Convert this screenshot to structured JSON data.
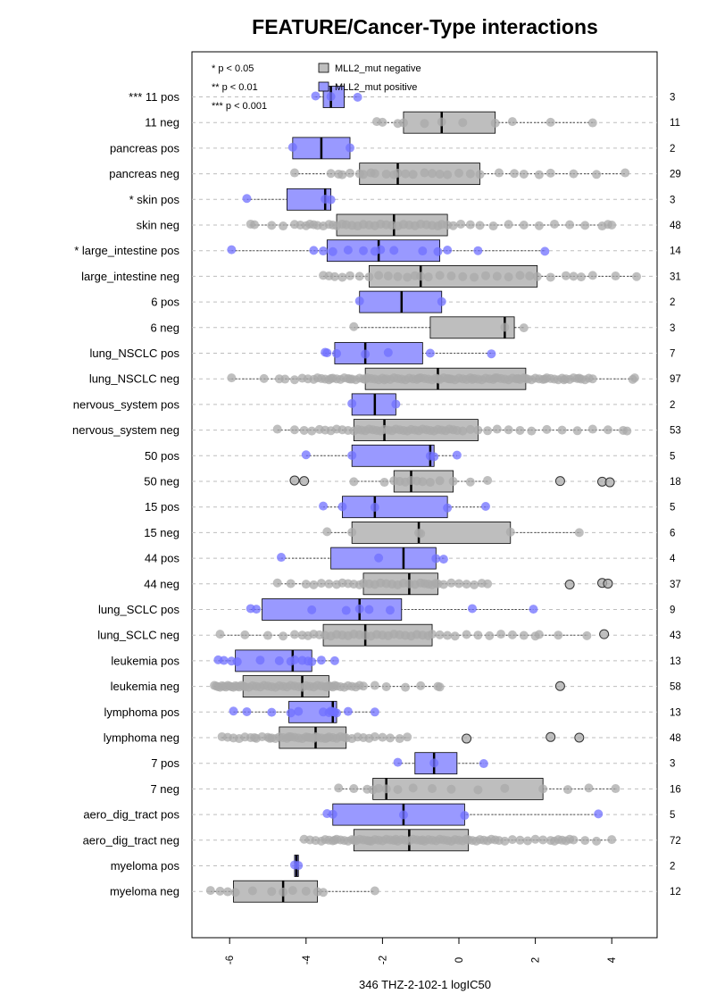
{
  "chart_data": {
    "type": "boxplot",
    "title": "FEATURE/Cancer-Type interactions",
    "xlabel": "346 THZ-2-102-1 logIC50",
    "xlim": [
      -6.8,
      5.3
    ],
    "x_ticks": [
      -6,
      -4,
      -2,
      0,
      2,
      4
    ],
    "x_tick_labels": [
      "-6",
      "-4",
      "-2",
      "0",
      "2",
      "4"
    ],
    "grid": true,
    "significance_legend": [
      "* p < 0.05",
      "** p < 0.01",
      "*** p < 0.001"
    ],
    "legend": [
      {
        "label": "MLL2_mut negative",
        "color": "#bebebe"
      },
      {
        "label": "MLL2_mut positive",
        "color": "#9999ff"
      }
    ],
    "colors": {
      "negative": "#bebebe",
      "positive": "#9999ff",
      "neg_point": "#a9a9a9",
      "pos_point": "#7070ff"
    },
    "rows": [
      {
        "label": "*** 11 pos",
        "n": "3",
        "group": "pos",
        "q1": -3.55,
        "median": -3.35,
        "q3": -3.0,
        "lo": -3.75,
        "hi": -2.65,
        "points": [
          -3.75,
          -3.35,
          -2.65
        ]
      },
      {
        "label": "11 neg",
        "n": "11",
        "group": "neg",
        "q1": -1.45,
        "median": -0.45,
        "q3": 0.95,
        "lo": -2.15,
        "hi": 3.5,
        "points": [
          -2.15,
          -2.0,
          -1.45,
          -0.9,
          -0.45,
          0.1,
          0.95,
          1.4,
          2.4,
          3.5,
          -1.6
        ]
      },
      {
        "label": "pancreas pos",
        "n": "2",
        "group": "pos",
        "q1": -4.35,
        "median": -3.6,
        "q3": -2.85,
        "lo": -4.35,
        "hi": -2.85,
        "points": [
          -4.35,
          -2.85
        ]
      },
      {
        "label": "pancreas neg",
        "n": "29",
        "group": "neg",
        "q1": -2.6,
        "median": -1.6,
        "q3": 0.55,
        "lo": -4.3,
        "hi": 4.35,
        "points": [
          -4.3,
          -3.35,
          -3.15,
          -3.05,
          -2.85,
          -2.6,
          -2.5,
          -2.3,
          -2.2,
          -1.9,
          -1.7,
          -1.6,
          -1.4,
          -1.2,
          -0.9,
          -0.7,
          -0.5,
          -0.3,
          0.0,
          0.3,
          0.55,
          1.05,
          1.45,
          1.7,
          2.1,
          2.4,
          3.0,
          3.6,
          4.35
        ]
      },
      {
        "label": "* skin pos",
        "n": "3",
        "group": "pos",
        "q1": -4.5,
        "median": -3.5,
        "q3": -3.35,
        "lo": -5.55,
        "hi": -3.35,
        "points": [
          -5.55,
          -3.5,
          -3.35
        ]
      },
      {
        "label": "skin neg",
        "n": "48",
        "group": "neg",
        "q1": -3.2,
        "median": -1.7,
        "q3": -0.3,
        "lo": -5.45,
        "hi": 4.0,
        "points": [
          -5.45,
          -5.35,
          -4.9,
          -4.6,
          -4.3,
          -4.15,
          -4.0,
          -3.9,
          -3.8,
          -3.7,
          -3.55,
          -3.4,
          -3.3,
          -3.2,
          -3.05,
          -2.95,
          -2.8,
          -2.65,
          -2.5,
          -2.35,
          -2.2,
          -2.05,
          -1.9,
          -1.75,
          -1.6,
          -1.45,
          -1.3,
          -1.15,
          -1.0,
          -0.85,
          -0.7,
          -0.55,
          -0.45,
          -0.3,
          -0.15,
          0.05,
          0.3,
          0.55,
          0.9,
          1.3,
          1.7,
          2.1,
          2.5,
          2.9,
          3.3,
          3.75,
          3.9,
          4.0
        ]
      },
      {
        "label": "* large_intestine pos",
        "n": "14",
        "group": "pos",
        "q1": -3.45,
        "median": -2.1,
        "q3": -0.5,
        "lo": -5.95,
        "hi": 2.25,
        "points": [
          -5.95,
          -3.8,
          -3.55,
          -3.3,
          -2.9,
          -2.5,
          -2.2,
          -2.05,
          -1.7,
          -0.95,
          -0.55,
          -0.3,
          0.5,
          2.25
        ]
      },
      {
        "label": "large_intestine neg",
        "n": "31",
        "group": "neg",
        "q1": -2.35,
        "median": -1.0,
        "q3": 2.05,
        "lo": -3.55,
        "hi": 4.65,
        "points": [
          -3.55,
          -3.4,
          -3.25,
          -3.05,
          -2.85,
          -2.6,
          -2.35,
          -2.1,
          -1.85,
          -1.6,
          -1.35,
          -1.15,
          -1.0,
          -0.8,
          -0.5,
          -0.2,
          0.1,
          0.4,
          0.7,
          1.0,
          1.3,
          1.6,
          1.85,
          2.05,
          2.4,
          2.8,
          3.0,
          3.2,
          3.5,
          4.1,
          4.65
        ]
      },
      {
        "label": "6 pos",
        "n": "2",
        "group": "pos",
        "q1": -2.6,
        "median": -1.5,
        "q3": -0.45,
        "lo": -2.6,
        "hi": -0.45,
        "points": [
          -2.6,
          -0.45
        ]
      },
      {
        "label": "6 neg",
        "n": "3",
        "group": "neg",
        "q1": -0.75,
        "median": 1.2,
        "q3": 1.45,
        "lo": -2.75,
        "hi": 1.7,
        "points": [
          -2.75,
          1.2,
          1.7
        ]
      },
      {
        "label": "lung_NSCLC pos",
        "n": "7",
        "group": "pos",
        "q1": -3.25,
        "median": -2.45,
        "q3": -0.95,
        "lo": -3.5,
        "hi": 0.85,
        "points": [
          -3.5,
          -3.45,
          -3.2,
          -2.45,
          -1.85,
          -0.75,
          0.85
        ]
      },
      {
        "label": "lung_NSCLC neg",
        "n": "97",
        "group": "neg",
        "q1": -2.45,
        "median": -0.55,
        "q3": 1.75,
        "lo": -5.95,
        "hi": 4.6,
        "points": [
          -5.95,
          -5.1,
          -4.55,
          -4.3,
          -4.1,
          -3.95,
          -3.8,
          -3.7,
          -3.6,
          -3.5,
          -3.4,
          -3.3,
          -3.2,
          -3.1,
          -3.0,
          -2.9,
          -2.8,
          -2.7,
          -2.6,
          -2.5,
          -2.45,
          -2.4,
          -2.3,
          -2.2,
          -2.1,
          -2.0,
          -1.9,
          -1.8,
          -1.7,
          -1.6,
          -1.5,
          -1.4,
          -1.3,
          -1.2,
          -1.1,
          -1.0,
          -0.9,
          -0.8,
          -0.7,
          -0.6,
          -0.55,
          -0.5,
          -0.4,
          -0.3,
          -0.2,
          -0.1,
          0.0,
          0.1,
          0.2,
          0.3,
          0.4,
          0.5,
          0.6,
          0.7,
          0.8,
          0.9,
          1.0,
          1.1,
          1.2,
          1.3,
          1.4,
          1.5,
          1.6,
          1.7,
          1.75,
          1.8,
          1.9,
          2.0,
          2.1,
          2.2,
          2.3,
          2.4,
          2.5,
          2.6,
          2.7,
          2.8,
          2.9,
          3.0,
          3.1,
          3.2,
          3.3,
          3.4,
          3.5,
          4.55,
          4.6,
          -3.35,
          -2.85,
          -1.95,
          -1.05,
          -0.25,
          0.35,
          0.95,
          1.55,
          2.25,
          2.75,
          3.15,
          -4.7
        ]
      },
      {
        "label": "nervous_system pos",
        "n": "2",
        "group": "pos",
        "q1": -2.8,
        "median": -2.2,
        "q3": -1.65,
        "lo": -2.8,
        "hi": -1.65,
        "points": [
          -2.8,
          -1.65
        ]
      },
      {
        "label": "nervous_system neg",
        "n": "53",
        "group": "neg",
        "q1": -2.75,
        "median": -1.95,
        "q3": 0.5,
        "lo": -4.75,
        "hi": 4.4,
        "points": [
          -4.75,
          -4.3,
          -4.05,
          -3.85,
          -3.65,
          -3.5,
          -3.35,
          -3.2,
          -3.05,
          -2.9,
          -2.75,
          -2.65,
          -2.55,
          -2.45,
          -2.35,
          -2.25,
          -2.15,
          -2.05,
          -1.95,
          -1.85,
          -1.75,
          -1.65,
          -1.55,
          -1.45,
          -1.35,
          -1.25,
          -1.15,
          -1.05,
          -0.95,
          -0.85,
          -0.75,
          -0.65,
          -0.55,
          -0.45,
          -0.35,
          -0.25,
          -0.15,
          -0.05,
          0.1,
          0.3,
          0.5,
          0.75,
          1.0,
          1.3,
          1.6,
          1.9,
          2.3,
          2.7,
          3.1,
          3.5,
          3.9,
          4.3,
          4.4
        ]
      },
      {
        "label": "50 pos",
        "n": "5",
        "group": "pos",
        "q1": -2.8,
        "median": -0.75,
        "q3": -0.65,
        "lo": -4.0,
        "hi": -0.05,
        "points": [
          -4.0,
          -2.8,
          -0.75,
          -0.65,
          -0.05
        ]
      },
      {
        "label": "50 neg",
        "n": "18",
        "group": "neg",
        "q1": -1.7,
        "median": -1.25,
        "q3": -0.15,
        "lo": -2.75,
        "hi": 0.75,
        "points": [
          -4.3,
          -4.05,
          -2.75,
          -1.95,
          -1.7,
          -1.55,
          -1.4,
          -1.25,
          -1.1,
          -0.95,
          -0.75,
          -0.5,
          -0.15,
          0.3,
          0.75,
          2.65,
          3.75,
          3.95
        ]
      },
      {
        "label": "15 pos",
        "n": "5",
        "group": "pos",
        "q1": -3.05,
        "median": -2.2,
        "q3": -0.3,
        "lo": -3.55,
        "hi": 0.7,
        "points": [
          -3.55,
          -3.05,
          -2.2,
          -0.3,
          0.7
        ]
      },
      {
        "label": "15 neg",
        "n": "6",
        "group": "neg",
        "q1": -2.8,
        "median": -1.05,
        "q3": 1.35,
        "lo": -3.45,
        "hi": 3.15,
        "points": [
          -3.45,
          -2.8,
          -1.05,
          -1.0,
          1.35,
          3.15
        ]
      },
      {
        "label": "44 pos",
        "n": "4",
        "group": "pos",
        "q1": -3.35,
        "median": -1.45,
        "q3": -0.6,
        "lo": -4.65,
        "hi": -0.4,
        "points": [
          -4.65,
          -2.1,
          -0.6,
          -0.4
        ]
      },
      {
        "label": "44 neg",
        "n": "37",
        "group": "neg",
        "q1": -2.5,
        "median": -1.3,
        "q3": -0.55,
        "lo": -4.75,
        "hi": 0.75,
        "points": [
          -4.75,
          -4.4,
          -4.0,
          -3.8,
          -3.6,
          -3.4,
          -3.2,
          -3.05,
          -2.9,
          -2.75,
          -2.6,
          -2.5,
          -2.35,
          -2.2,
          -2.05,
          -1.9,
          -1.75,
          -1.6,
          -1.45,
          -1.3,
          -1.15,
          -1.0,
          -0.9,
          -0.8,
          -0.7,
          -0.6,
          -0.55,
          -0.4,
          -0.2,
          0.0,
          0.2,
          0.4,
          0.6,
          0.75,
          2.9,
          3.75,
          3.9
        ]
      },
      {
        "label": "lung_SCLC pos",
        "n": "9",
        "group": "pos",
        "q1": -5.15,
        "median": -2.6,
        "q3": -1.5,
        "lo": -5.45,
        "hi": 1.95,
        "points": [
          -5.45,
          -5.3,
          -3.85,
          -2.95,
          -2.6,
          -2.35,
          -1.8,
          0.35,
          1.95
        ]
      },
      {
        "label": "lung_SCLC neg",
        "n": "43",
        "group": "neg",
        "q1": -3.55,
        "median": -2.45,
        "q3": -0.7,
        "lo": -6.25,
        "hi": 3.35,
        "points": [
          -6.25,
          -5.6,
          -5.0,
          -4.6,
          -4.3,
          -4.1,
          -3.95,
          -3.8,
          -3.65,
          -3.5,
          -3.35,
          -3.2,
          -3.05,
          -2.9,
          -2.75,
          -2.6,
          -2.45,
          -2.3,
          -2.15,
          -2.0,
          -1.85,
          -1.7,
          -1.55,
          -1.4,
          -1.25,
          -1.1,
          -0.95,
          -0.8,
          -0.7,
          -0.5,
          -0.3,
          -0.1,
          0.2,
          0.5,
          0.8,
          1.1,
          1.4,
          1.7,
          2.0,
          2.1,
          2.6,
          3.35,
          3.8
        ]
      },
      {
        "label": "leukemia pos",
        "n": "13",
        "group": "pos",
        "q1": -5.85,
        "median": -4.35,
        "q3": -3.85,
        "lo": -6.3,
        "hi": -3.25,
        "points": [
          -6.3,
          -6.15,
          -5.95,
          -5.8,
          -5.2,
          -4.7,
          -4.4,
          -4.3,
          -4.1,
          -3.95,
          -3.85,
          -3.6,
          -3.25
        ]
      },
      {
        "label": "leukemia neg",
        "n": "58",
        "group": "neg",
        "q1": -5.65,
        "median": -4.1,
        "q3": -3.4,
        "lo": -6.4,
        "hi": -0.5,
        "points": [
          -6.4,
          -6.35,
          -6.3,
          -6.25,
          -6.2,
          -6.15,
          -6.1,
          -6.05,
          -6.0,
          -5.95,
          -5.9,
          -5.85,
          -5.8,
          -5.75,
          -5.7,
          -5.65,
          -5.6,
          -5.5,
          -5.4,
          -5.3,
          -5.2,
          -5.1,
          -5.0,
          -4.9,
          -4.8,
          -4.7,
          -4.6,
          -4.5,
          -4.4,
          -4.3,
          -4.2,
          -4.1,
          -4.0,
          -3.9,
          -3.8,
          -3.7,
          -3.6,
          -3.5,
          -3.45,
          -3.4,
          -3.35,
          -3.3,
          -3.25,
          -3.2,
          -3.1,
          -3.0,
          -2.9,
          -2.8,
          -2.7,
          -2.6,
          -2.5,
          -1.9,
          -1.4,
          -1.0,
          -0.55,
          -0.5,
          -2.2,
          2.65
        ]
      },
      {
        "label": "lymphoma pos",
        "n": "13",
        "group": "pos",
        "q1": -4.45,
        "median": -3.3,
        "q3": -3.2,
        "lo": -5.9,
        "hi": -2.2,
        "points": [
          -5.9,
          -5.55,
          -4.9,
          -4.4,
          -4.2,
          -3.55,
          -3.4,
          -3.35,
          -3.3,
          -3.25,
          -3.2,
          -2.9,
          -2.2
        ]
      },
      {
        "label": "lymphoma neg",
        "n": "48",
        "group": "neg",
        "q1": -4.7,
        "median": -3.75,
        "q3": -2.95,
        "lo": -6.2,
        "hi": -1.35,
        "points": [
          -6.2,
          -6.05,
          -5.9,
          -5.75,
          -5.6,
          -5.45,
          -5.3,
          -5.15,
          -5.0,
          -4.9,
          -4.8,
          -4.7,
          -4.6,
          -4.5,
          -4.4,
          -4.3,
          -4.2,
          -4.1,
          -4.0,
          -3.9,
          -3.8,
          -3.75,
          -3.7,
          -3.6,
          -3.5,
          -3.4,
          -3.3,
          -3.2,
          -3.1,
          -3.0,
          -2.95,
          -2.8,
          -2.65,
          -2.5,
          -2.35,
          -2.2,
          -2.0,
          -1.8,
          -1.55,
          -1.35,
          -5.35,
          -4.95,
          -4.45,
          -3.95,
          -3.45,
          0.2,
          2.4,
          3.15
        ]
      },
      {
        "label": "7 pos",
        "n": "3",
        "group": "pos",
        "q1": -1.15,
        "median": -0.65,
        "q3": -0.05,
        "lo": -1.6,
        "hi": 0.65,
        "points": [
          -1.6,
          -0.65,
          0.65
        ]
      },
      {
        "label": "7 neg",
        "n": "16",
        "group": "neg",
        "q1": -2.25,
        "median": -1.9,
        "q3": 2.2,
        "lo": -3.15,
        "hi": 4.1,
        "points": [
          -3.15,
          -2.75,
          -2.4,
          -2.25,
          -2.1,
          -1.9,
          -1.6,
          -1.2,
          -0.7,
          -0.2,
          0.5,
          1.2,
          2.2,
          2.85,
          3.4,
          4.1
        ]
      },
      {
        "label": "aero_dig_tract pos",
        "n": "5",
        "group": "pos",
        "q1": -3.3,
        "median": -1.45,
        "q3": 0.15,
        "lo": -3.45,
        "hi": 3.65,
        "points": [
          -3.45,
          -3.3,
          -1.45,
          0.15,
          3.65
        ]
      },
      {
        "label": "aero_dig_tract neg",
        "n": "72",
        "group": "neg",
        "q1": -2.75,
        "median": -1.3,
        "q3": 0.25,
        "lo": -4.05,
        "hi": 4.0,
        "points": [
          -4.05,
          -3.9,
          -3.75,
          -3.6,
          -3.5,
          -3.4,
          -3.3,
          -3.2,
          -3.1,
          -3.0,
          -2.9,
          -2.8,
          -2.75,
          -2.7,
          -2.6,
          -2.5,
          -2.4,
          -2.3,
          -2.2,
          -2.1,
          -2.0,
          -1.9,
          -1.8,
          -1.7,
          -1.6,
          -1.5,
          -1.4,
          -1.3,
          -1.2,
          -1.1,
          -1.0,
          -0.9,
          -0.8,
          -0.7,
          -0.6,
          -0.5,
          -0.4,
          -0.3,
          -0.2,
          -0.1,
          0.0,
          0.1,
          0.2,
          0.25,
          0.35,
          0.45,
          0.55,
          0.65,
          0.75,
          0.85,
          0.95,
          1.05,
          1.2,
          1.4,
          1.6,
          1.8,
          2.0,
          2.2,
          2.4,
          2.5,
          2.6,
          2.7,
          2.8,
          2.9,
          3.0,
          3.3,
          3.6,
          4.0,
          -3.25,
          -2.35,
          -1.65,
          -0.95
        ]
      },
      {
        "label": "myeloma pos",
        "n": "2",
        "group": "pos",
        "q1": -4.3,
        "median": -4.25,
        "q3": -4.2,
        "lo": -4.3,
        "hi": -4.2,
        "points": [
          -4.3,
          -4.2
        ]
      },
      {
        "label": "myeloma neg",
        "n": "12",
        "group": "neg",
        "q1": -5.9,
        "median": -4.6,
        "q3": -3.7,
        "lo": -6.5,
        "hi": -2.2,
        "points": [
          -6.5,
          -6.25,
          -6.05,
          -5.85,
          -5.4,
          -4.9,
          -4.6,
          -4.35,
          -4.0,
          -3.7,
          -3.55,
          -2.2
        ]
      }
    ]
  }
}
